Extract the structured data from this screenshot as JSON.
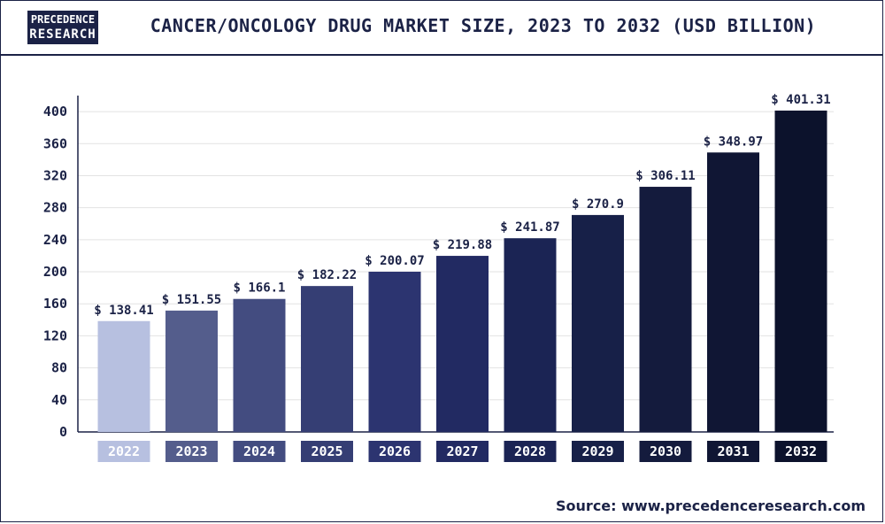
{
  "header": {
    "logo_line1": "PRECEDENCE",
    "logo_line2": "RESEARCH",
    "title": "CANCER/ONCOLOGY DRUG MARKET SIZE, 2023 TO 2032 (USD BILLION)"
  },
  "footer": {
    "source_label": "Source:",
    "source_url": "www.precedenceresearch.com"
  },
  "chart_data": {
    "type": "bar",
    "title": "CANCER/ONCOLOGY DRUG MARKET SIZE, 2023 TO 2032 (USD BILLION)",
    "xlabel": "",
    "ylabel": "",
    "ylim": [
      0,
      420
    ],
    "yticks": [
      0,
      40,
      80,
      120,
      160,
      200,
      240,
      280,
      320,
      360,
      400
    ],
    "grid": true,
    "categories": [
      "2022",
      "2023",
      "2024",
      "2025",
      "2026",
      "2027",
      "2028",
      "2029",
      "2030",
      "2031",
      "2032"
    ],
    "values": [
      138.41,
      151.55,
      166.1,
      182.22,
      200.07,
      219.88,
      241.87,
      270.9,
      306.11,
      348.97,
      401.31
    ],
    "value_labels": [
      "$ 138.41",
      "$ 151.55",
      "$ 166.1",
      "$ 182.22",
      "$ 200.07",
      "$ 219.88",
      "$ 241.87",
      "$ 270.9",
      "$ 306.11",
      "$ 348.97",
      "$ 401.31"
    ],
    "bar_colors": [
      "#b7c0e0",
      "#545d8c",
      "#434c80",
      "#353e74",
      "#2c3470",
      "#222a62",
      "#1b2454",
      "#172048",
      "#141b3d",
      "#101634",
      "#0c122c"
    ],
    "category_label_colors": [
      "#b7c0e0",
      "#545d8c",
      "#434c80",
      "#353e74",
      "#2c3470",
      "#222a62",
      "#1b2454",
      "#172048",
      "#141b3d",
      "#101634",
      "#0c122c"
    ]
  }
}
